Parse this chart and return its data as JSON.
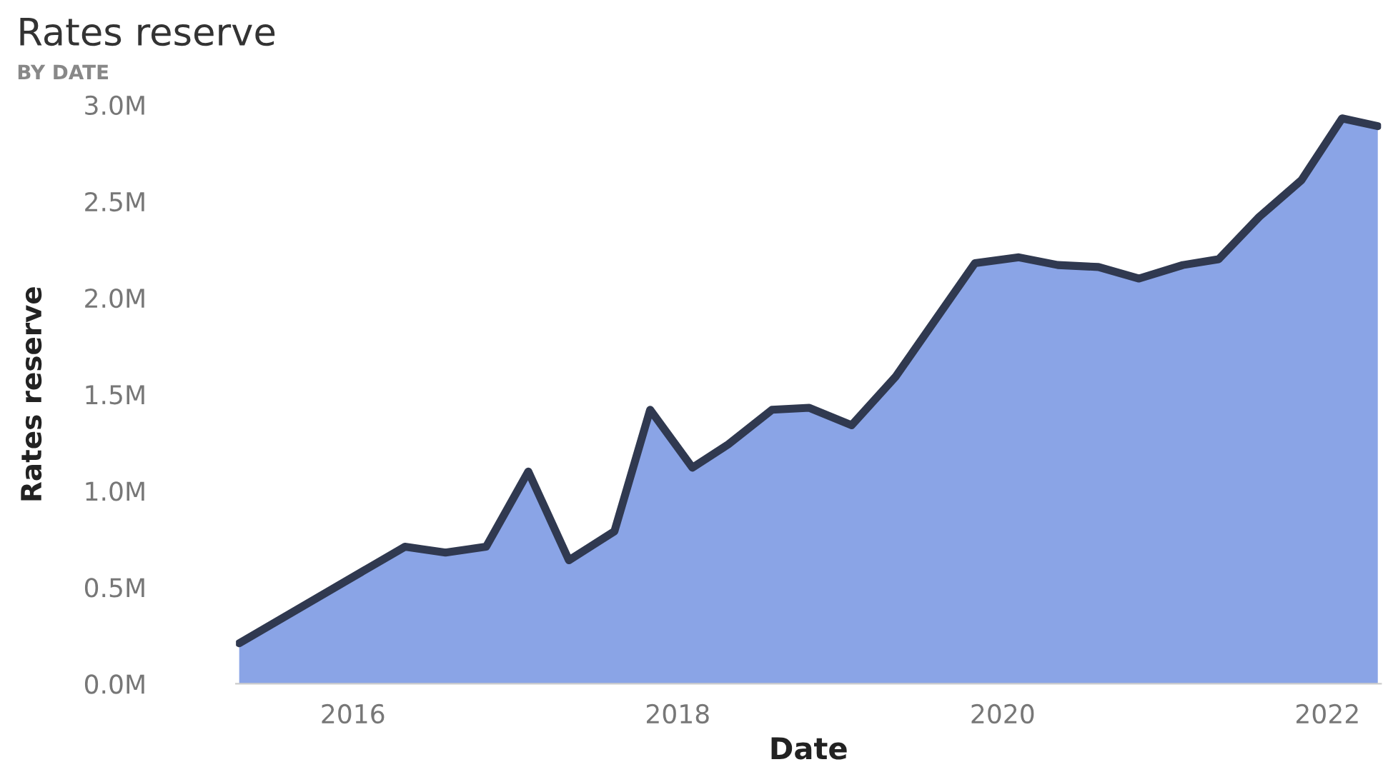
{
  "chart_data": {
    "type": "area",
    "title": "Rates reserve",
    "subtitle": "BY DATE",
    "xlabel": "Date",
    "ylabel": "Rates reserve",
    "x": [
      2015.3,
      2016.32,
      2016.57,
      2016.82,
      2017.08,
      2017.33,
      2017.61,
      2017.83,
      2018.09,
      2018.31,
      2018.58,
      2018.81,
      2019.07,
      2019.34,
      2019.83,
      2020.1,
      2020.34,
      2020.59,
      2020.84,
      2021.11,
      2021.33,
      2021.58,
      2021.84,
      2022.09,
      2022.31
    ],
    "series": [
      {
        "color": "#8aa4e6",
        "values": [
          210000,
          710000,
          680000,
          710000,
          1100000,
          640000,
          790000,
          1420000,
          1120000,
          1240000,
          1420000,
          1430000,
          1340000,
          1590000,
          2180000,
          2210000,
          2170000,
          2160000,
          2100000,
          2170000,
          2200000,
          2420000,
          2610000,
          2930000,
          2890000
        ]
      }
    ],
    "xlim": [
      2015.28,
      2022.33
    ],
    "xticks": [
      2016,
      2018,
      2020,
      2022
    ],
    "ylim": [
      0,
      3000000
    ],
    "yticks": [
      {
        "value": 0,
        "label": "0.0M"
      },
      {
        "value": 500000,
        "label": "0.5M"
      },
      {
        "value": 1000000,
        "label": "1.0M"
      },
      {
        "value": 1500000,
        "label": "1.5M"
      },
      {
        "value": 2000000,
        "label": "2.0M"
      },
      {
        "value": 2500000,
        "label": "2.5M"
      },
      {
        "value": 3000000,
        "label": "3.0M"
      }
    ],
    "grid": false,
    "legend": false
  }
}
